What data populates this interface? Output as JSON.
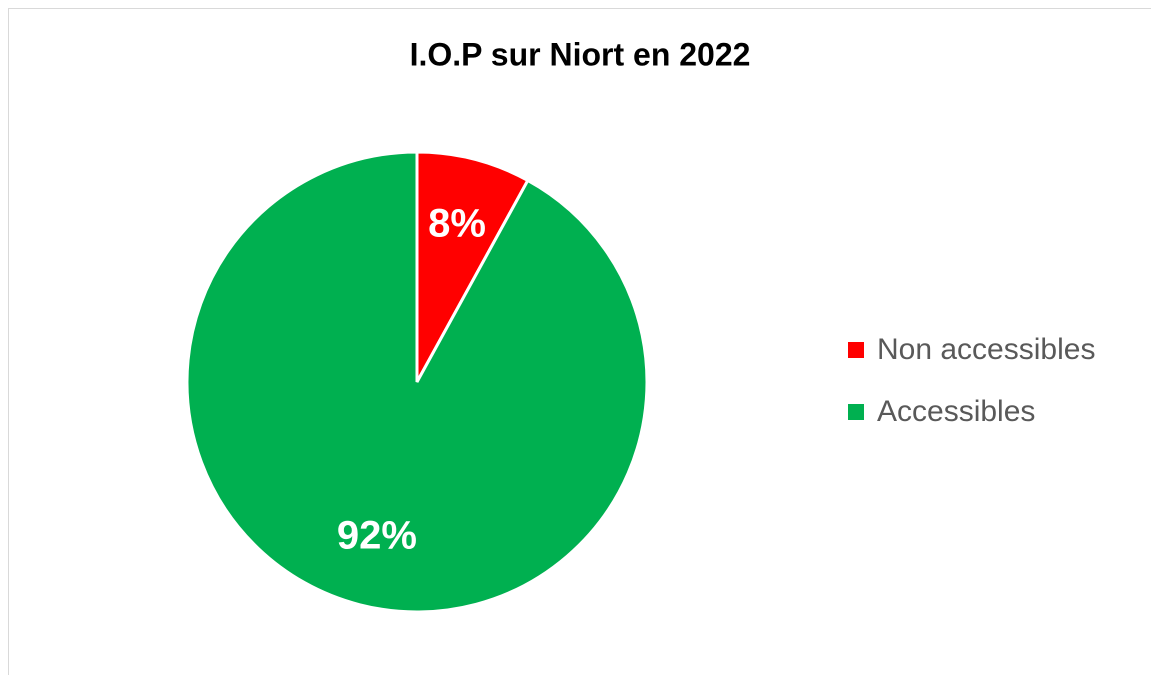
{
  "chart_data": {
    "type": "pie",
    "title": "I.O.P sur Niort en  2022",
    "categories": [
      "Non accessibles",
      "Accessibles"
    ],
    "values": [
      8,
      92
    ],
    "value_labels": [
      "8%",
      "92%"
    ],
    "colors": [
      "#ff0000",
      "#00b050"
    ],
    "legend": "right"
  }
}
